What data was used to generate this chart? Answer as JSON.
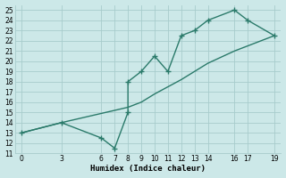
{
  "line1_x": [
    0,
    3,
    6,
    7,
    8,
    8,
    9,
    10,
    11,
    12,
    13,
    14,
    16,
    17,
    19
  ],
  "line1_y": [
    13,
    14,
    12.5,
    11.5,
    15,
    18,
    19,
    20.5,
    19,
    22.5,
    23,
    24,
    25,
    24,
    22.5
  ],
  "line2_x": [
    0,
    3,
    8,
    9,
    10,
    11,
    12,
    13,
    14,
    16,
    17,
    19
  ],
  "line2_y": [
    13,
    14,
    15.5,
    16,
    16.8,
    17.5,
    18.2,
    19,
    19.8,
    21,
    21.5,
    22.5
  ],
  "color": "#2a7a6a",
  "bg_color": "#cce8e8",
  "grid_color": "#a8cccc",
  "xlabel": "Humidex (Indice chaleur)",
  "xlim": [
    -0.5,
    19.5
  ],
  "ylim": [
    11,
    25.5
  ],
  "xticks": [
    0,
    3,
    6,
    7,
    8,
    9,
    10,
    11,
    12,
    13,
    14,
    16,
    17,
    19
  ],
  "yticks": [
    11,
    12,
    13,
    14,
    15,
    16,
    17,
    18,
    19,
    20,
    21,
    22,
    23,
    24,
    25
  ],
  "marker": "+",
  "markersize": 5,
  "linewidth": 1.0
}
